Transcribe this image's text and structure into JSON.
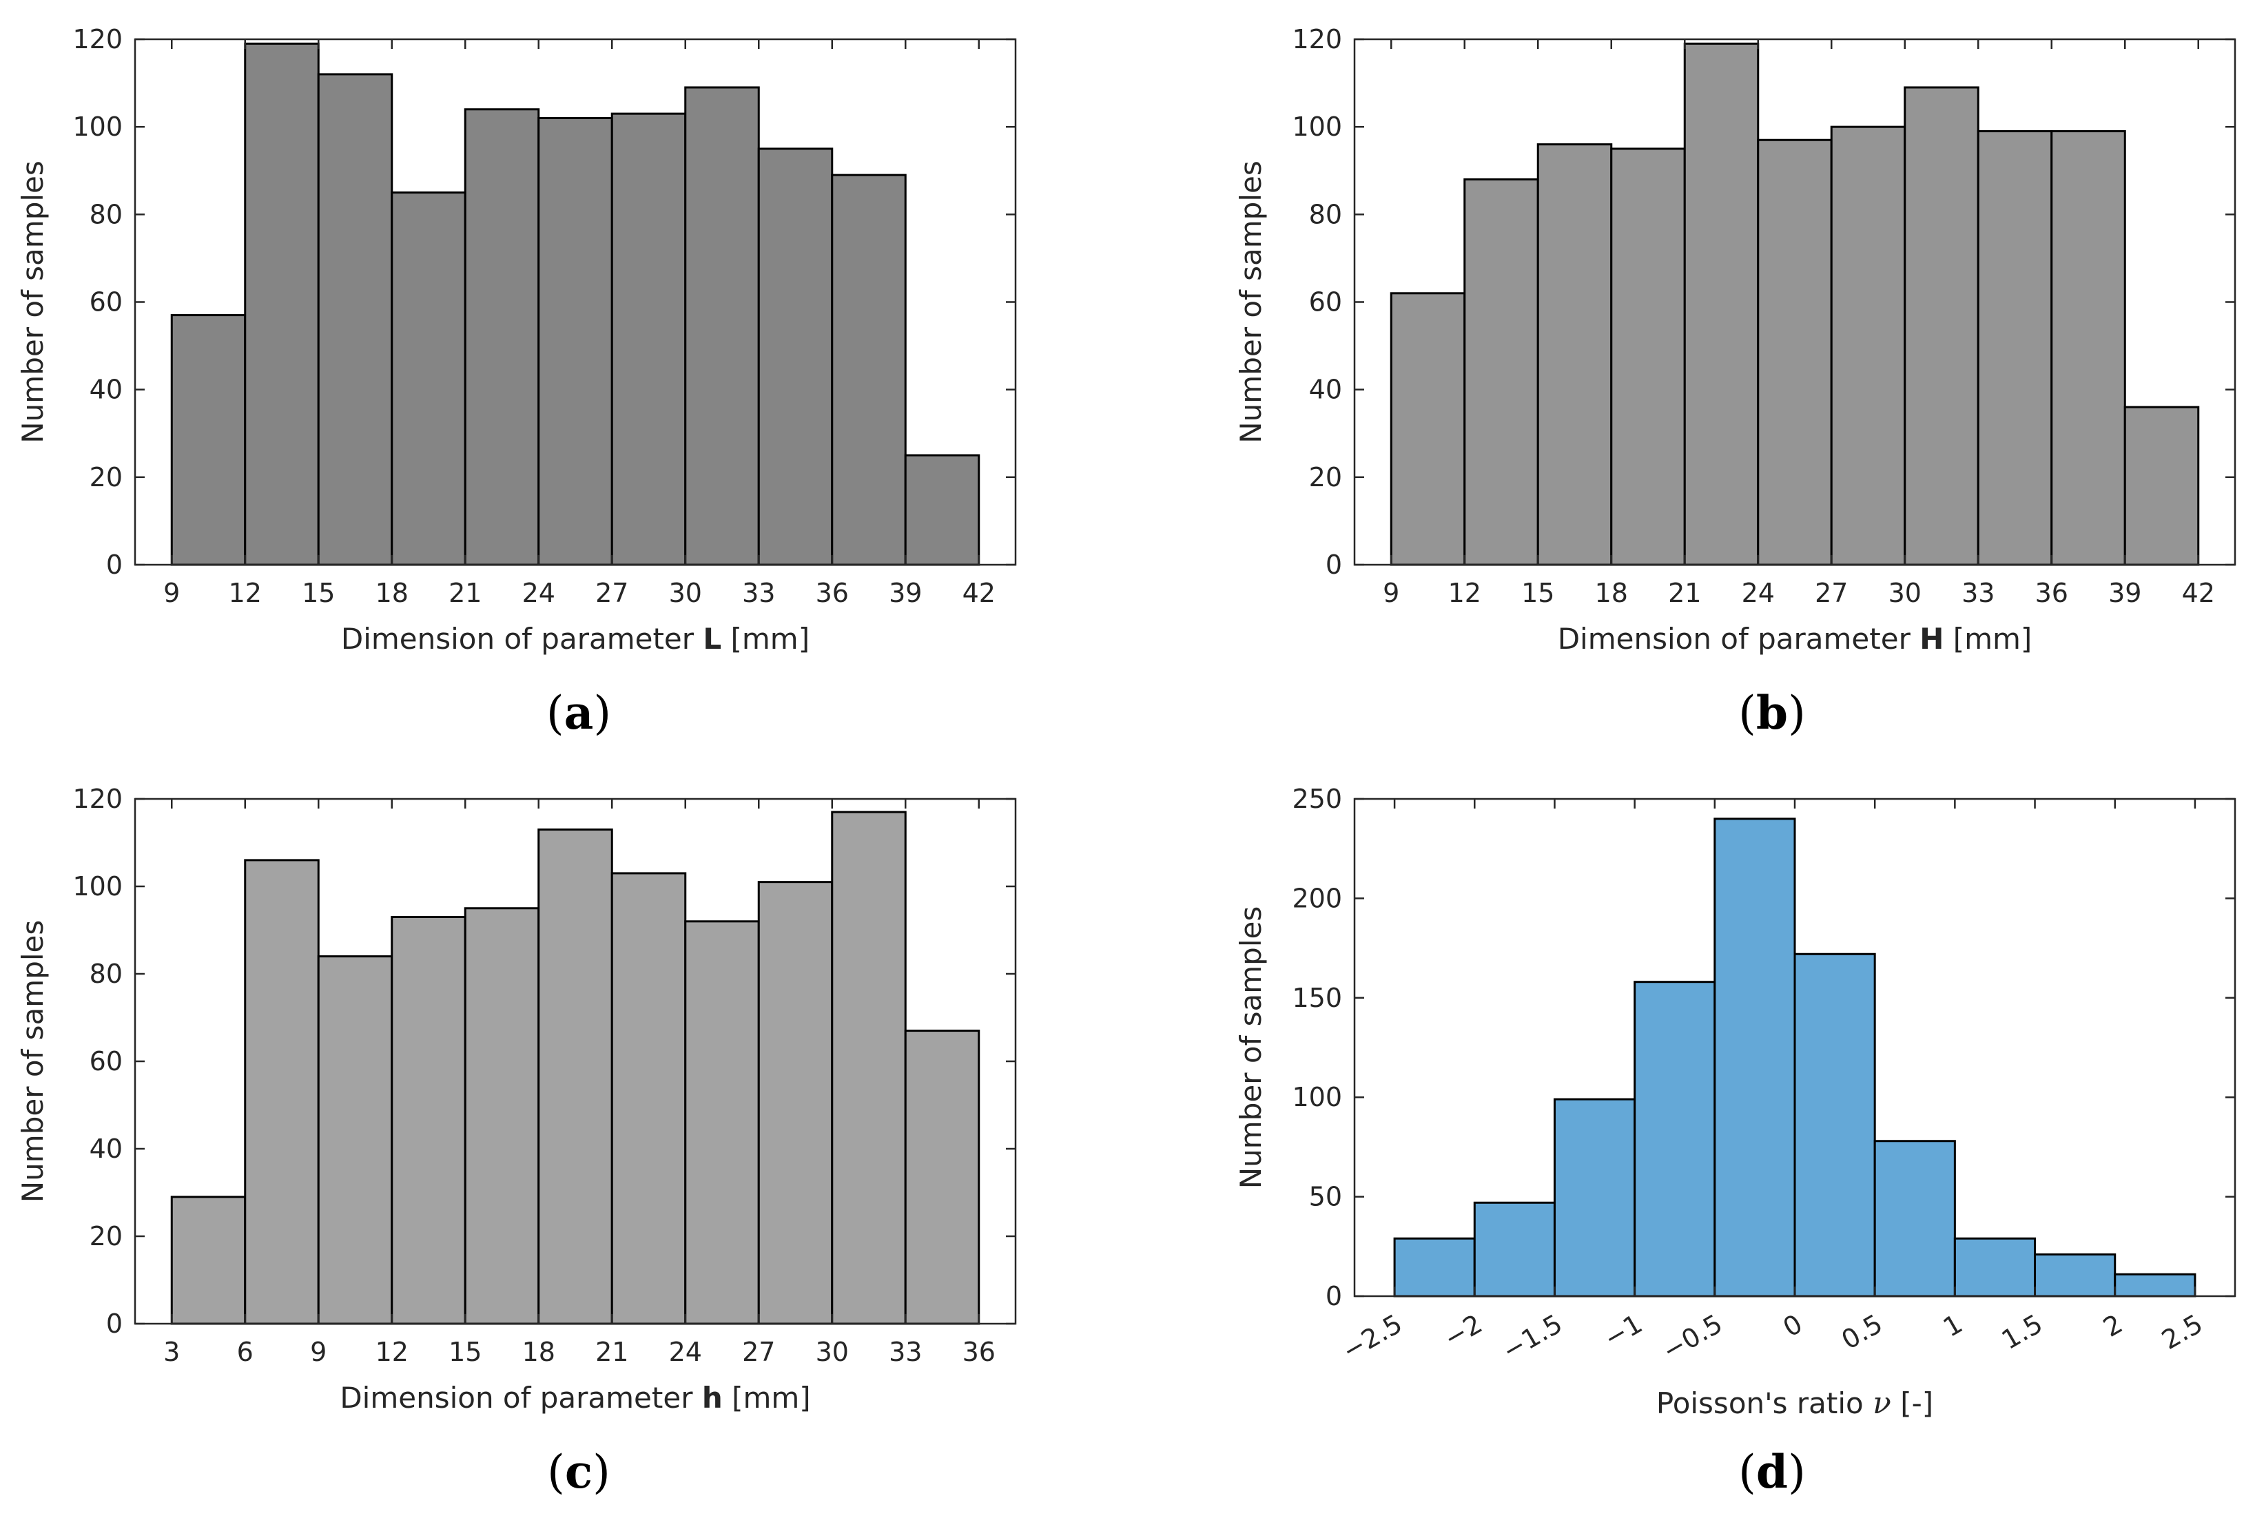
{
  "chart_data": [
    {
      "id": "a",
      "type": "bar",
      "panel_label": "a",
      "color": "#858585",
      "edges": [
        9,
        12,
        15,
        18,
        21,
        24,
        27,
        30,
        33,
        36,
        39,
        42
      ],
      "values": [
        57,
        119,
        112,
        85,
        104,
        102,
        103,
        109,
        95,
        89,
        25
      ],
      "xlim": [
        7.5,
        43.5
      ],
      "ylim": [
        0,
        120
      ],
      "xticks": [
        "9",
        "12",
        "15",
        "18",
        "21",
        "24",
        "27",
        "30",
        "33",
        "36",
        "39",
        "42"
      ],
      "yticks": [
        "0",
        "20",
        "40",
        "60",
        "80",
        "100",
        "120"
      ],
      "xlabel_prefix": "Dimension of parameter ",
      "xlabel_symbol": "L",
      "xlabel_suffix": " [mm]",
      "ylabel": "Number of samples"
    },
    {
      "id": "b",
      "type": "bar",
      "panel_label": "b",
      "color": "#959595",
      "edges": [
        9,
        12,
        15,
        18,
        21,
        24,
        27,
        30,
        33,
        36,
        39,
        42
      ],
      "values": [
        62,
        88,
        96,
        95,
        119,
        97,
        100,
        109,
        99,
        99,
        36
      ],
      "xlim": [
        7.5,
        43.5
      ],
      "ylim": [
        0,
        120
      ],
      "xticks": [
        "9",
        "12",
        "15",
        "18",
        "21",
        "24",
        "27",
        "30",
        "33",
        "36",
        "39",
        "42"
      ],
      "yticks": [
        "0",
        "20",
        "40",
        "60",
        "80",
        "100",
        "120"
      ],
      "xlabel_prefix": "Dimension of parameter ",
      "xlabel_symbol": "H",
      "xlabel_suffix": " [mm]",
      "ylabel": "Number of samples"
    },
    {
      "id": "c",
      "type": "bar",
      "panel_label": "c",
      "color": "#a3a3a3",
      "edges": [
        3,
        6,
        9,
        12,
        15,
        18,
        21,
        24,
        27,
        30,
        33,
        36
      ],
      "values": [
        29,
        106,
        84,
        93,
        95,
        113,
        103,
        92,
        101,
        117,
        67
      ],
      "xlim": [
        1.5,
        37.5
      ],
      "ylim": [
        0,
        120
      ],
      "xticks": [
        "3",
        "6",
        "9",
        "12",
        "15",
        "18",
        "21",
        "24",
        "27",
        "30",
        "33",
        "36"
      ],
      "yticks": [
        "0",
        "20",
        "40",
        "60",
        "80",
        "100",
        "120"
      ],
      "xlabel_prefix": "Dimension of parameter ",
      "xlabel_symbol": "h",
      "xlabel_suffix": " [mm]",
      "ylabel": "Number of samples"
    },
    {
      "id": "d",
      "type": "bar",
      "panel_label": "d",
      "color": "#64a8d7",
      "edges": [
        -2.5,
        -2,
        -1.5,
        -1,
        -0.5,
        0,
        0.5,
        1,
        1.5,
        2,
        2.5
      ],
      "values": [
        29,
        47,
        99,
        158,
        240,
        172,
        78,
        29,
        21,
        11
      ],
      "xlim": [
        -2.75,
        2.75
      ],
      "ylim": [
        0,
        250
      ],
      "xticks": [
        "−2.5",
        "−2",
        "−1.5",
        "−1",
        "−0.5",
        "0",
        "0.5",
        "1",
        "1.5",
        "2",
        "2.5"
      ],
      "yticks": [
        "0",
        "50",
        "100",
        "150",
        "200",
        "250"
      ],
      "xlabel_prefix": "Poisson's ratio ",
      "xlabel_symbol": "ν",
      "xlabel_suffix": " [-]",
      "ylabel": "Number of samples"
    }
  ]
}
